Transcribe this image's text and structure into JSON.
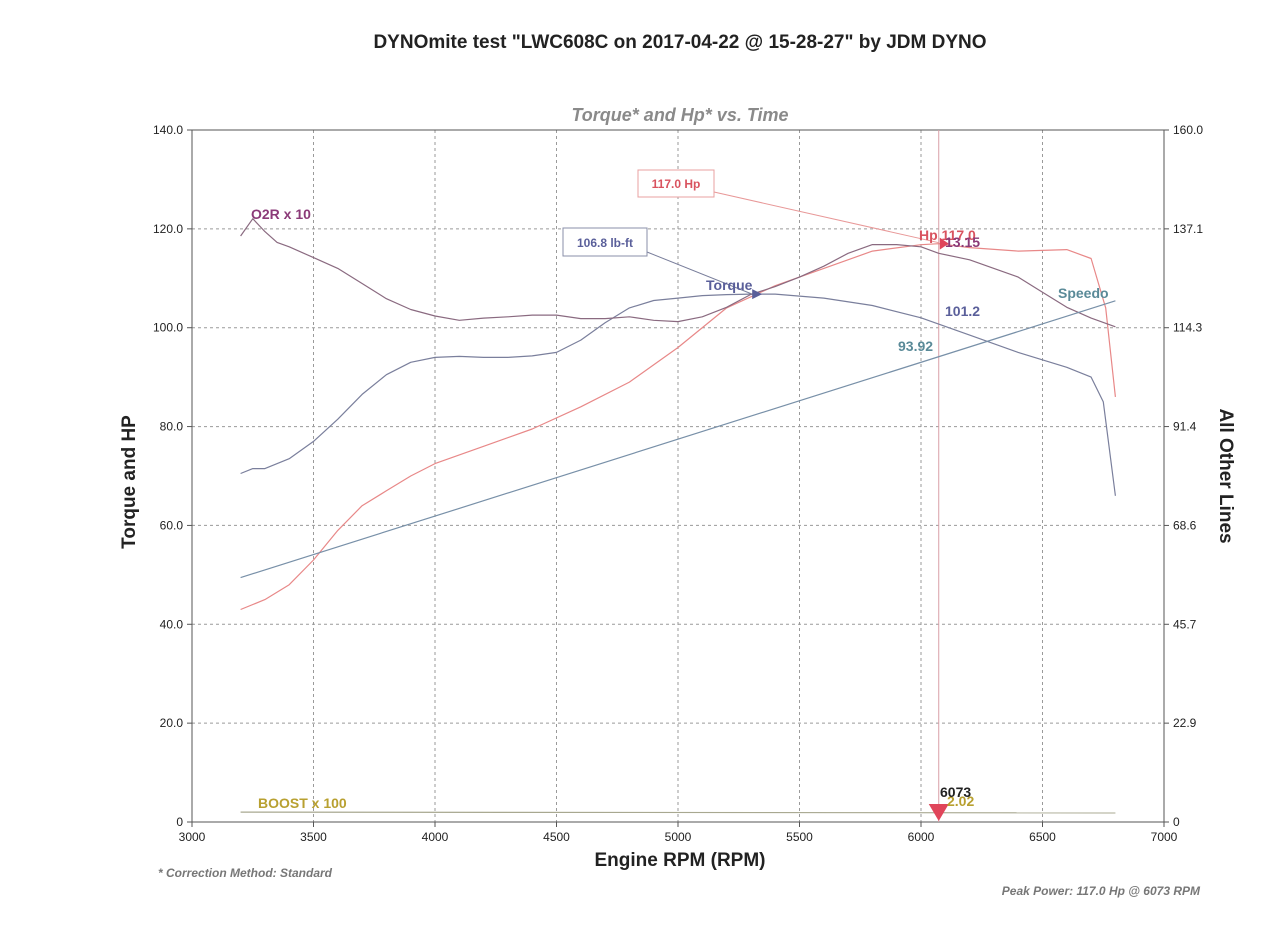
{
  "chart_data": {
    "type": "line",
    "title": "DYNOmite test \"LWC608C on 2017-04-22 @ 15-28-27\" by JDM DYNO",
    "subtitle": "Torque* and Hp* vs. Time",
    "xlabel": "Engine RPM (RPM)",
    "ylabel_left": "Torque and HP",
    "ylabel_right": "All Other Lines",
    "xlim": [
      3000,
      7000
    ],
    "ylim_left": [
      0,
      140
    ],
    "ylim_right": [
      0,
      160
    ],
    "x_ticks": [
      "3000",
      "3500",
      "4000",
      "4500",
      "5000",
      "5500",
      "6000",
      "6500",
      "7000"
    ],
    "y_left_ticks": [
      "0",
      "20.0",
      "40.0",
      "60.0",
      "80.0",
      "100.0",
      "120.0",
      "140.0"
    ],
    "y_right_ticks": [
      "0",
      "22.9",
      "45.7",
      "68.6",
      "91.4",
      "114.3",
      "137.1",
      "160.0"
    ],
    "grid": true,
    "series": [
      {
        "name": "Hp",
        "axis": "left",
        "color": "#e88888",
        "x": [
          3200,
          3300,
          3400,
          3500,
          3600,
          3700,
          3800,
          3900,
          4000,
          4200,
          4400,
          4600,
          4800,
          5000,
          5200,
          5400,
          5600,
          5800,
          6000,
          6073,
          6200,
          6400,
          6600,
          6700,
          6760,
          6800
        ],
        "y": [
          43,
          45,
          48,
          53,
          59,
          64,
          67,
          70,
          72.5,
          76,
          79.5,
          84,
          89,
          96,
          104,
          108.5,
          112,
          115.5,
          116.8,
          117.0,
          116.2,
          115.5,
          115.8,
          114,
          104,
          86
        ]
      },
      {
        "name": "Torque",
        "axis": "left",
        "color": "#7a7f9c",
        "x": [
          3200,
          3250,
          3300,
          3400,
          3500,
          3600,
          3700,
          3800,
          3900,
          4000,
          4100,
          4200,
          4300,
          4400,
          4500,
          4600,
          4700,
          4800,
          4900,
          5000,
          5100,
          5200,
          5300,
          5400,
          5600,
          5800,
          6000,
          6200,
          6400,
          6600,
          6700,
          6750,
          6800
        ],
        "y": [
          70.5,
          71.5,
          71.5,
          73.5,
          77,
          81.5,
          86.5,
          90.5,
          93,
          94,
          94.2,
          94,
          94,
          94.3,
          95,
          97.5,
          101,
          104,
          105.5,
          106,
          106.5,
          106.7,
          106.8,
          106.8,
          106,
          104.5,
          102,
          98.5,
          95,
          92,
          90,
          85,
          66
        ]
      },
      {
        "name": "O2R x 10",
        "axis": "right",
        "color": "#8a6a80",
        "x": [
          3200,
          3250,
          3300,
          3350,
          3400,
          3500,
          3600,
          3700,
          3800,
          3900,
          4000,
          4100,
          4200,
          4300,
          4400,
          4500,
          4600,
          4700,
          4800,
          4900,
          5000,
          5100,
          5200,
          5300,
          5400,
          5500,
          5600,
          5700,
          5800,
          5900,
          6000,
          6073,
          6200,
          6300,
          6400,
          6500,
          6600,
          6700,
          6800
        ],
        "y": [
          135.5,
          139.5,
          136.5,
          134,
          133,
          130.5,
          128,
          124.5,
          121,
          118.5,
          117,
          116,
          116.5,
          116.8,
          117.2,
          117.2,
          116.4,
          116.4,
          116.8,
          116,
          115.7,
          116.8,
          119,
          122,
          123.8,
          126,
          128.5,
          131.5,
          133.5,
          133.5,
          133,
          131.5,
          130,
          128,
          126,
          122.5,
          119,
          116.5,
          114.5
        ]
      },
      {
        "name": "Speedo",
        "axis": "right",
        "color": "#7890a8",
        "x": [
          3200,
          6800
        ],
        "y": [
          56.5,
          120.5
        ]
      },
      {
        "name": "BOOST x 100",
        "axis": "right",
        "color": "#a8a890",
        "x": [
          3200,
          6800
        ],
        "y": [
          2.3,
          2.1
        ]
      }
    ],
    "series_labels": {
      "o2r": "O2R x 10",
      "torque": "Torque",
      "hp": "Hp 117.0",
      "speedo": "Speedo",
      "boost": "BOOST x 100"
    },
    "annotations": {
      "hp_callout": "117.0 Hp",
      "torque_callout": "106.8 lb-ft",
      "o2r_value": "13.15",
      "torque_value": "101.2",
      "speedo_value": "93.92",
      "boost_value": "2.02",
      "rpm_marker": "6073"
    },
    "cursor_rpm": 6073,
    "peak_hp": {
      "rpm": 6073,
      "value": 117.0
    },
    "peak_torque": {
      "rpm": 5330,
      "value": 106.8
    },
    "colors": {
      "hp": "#d9535f",
      "torque": "#5a5f9a",
      "o2r": "#8b3a78",
      "speedo": "#5a8a98",
      "boost": "#b8a030",
      "marker": "#e0455a"
    }
  },
  "footnotes": {
    "correction": "* Correction Method: Standard",
    "peak": "Peak Power: 117.0 Hp @ 6073 RPM"
  }
}
